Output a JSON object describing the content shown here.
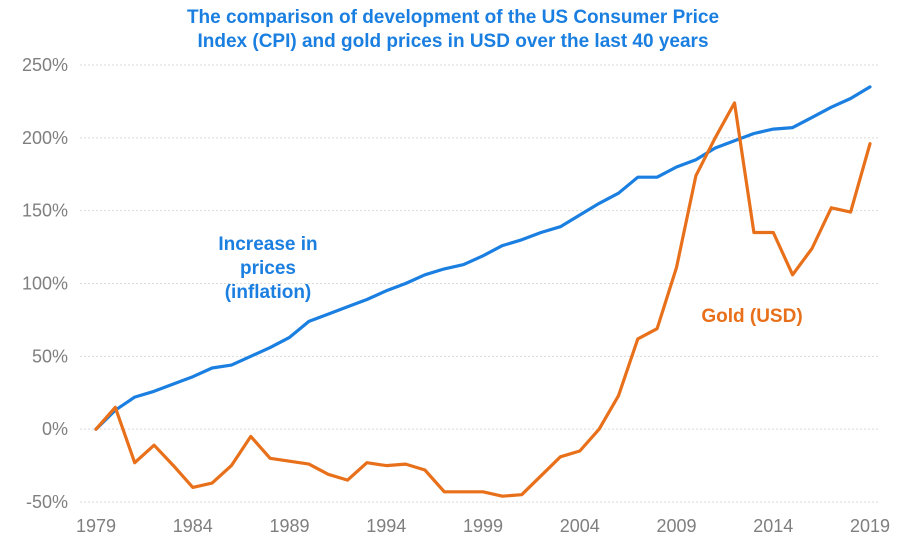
{
  "chart_data": {
    "type": "line",
    "title": "The comparison of development of the US Consumer Price Index (CPI) and gold prices in USD over the last 40 years",
    "title_lines": [
      "The comparison of development of the US Consumer Price",
      "Index (CPI) and gold prices in USD over the last 40 years"
    ],
    "xlabel": "",
    "ylabel": "",
    "value_unit": "percent change since 1979",
    "values_note": "Estimated from the chart by reading line vertices against the gridlines; approximate.",
    "x": [
      1979,
      1980,
      1981,
      1982,
      1983,
      1984,
      1985,
      1986,
      1987,
      1988,
      1989,
      1990,
      1991,
      1992,
      1993,
      1994,
      1995,
      1996,
      1997,
      1998,
      1999,
      2000,
      2001,
      2002,
      2003,
      2004,
      2005,
      2006,
      2007,
      2008,
      2009,
      2010,
      2011,
      2012,
      2013,
      2014,
      2015,
      2016,
      2017,
      2018,
      2019
    ],
    "xticks": [
      "1979",
      "1984",
      "1989",
      "1994",
      "1999",
      "2004",
      "2009",
      "2014",
      "2019"
    ],
    "yticks": [
      "-50%",
      "0%",
      "50%",
      "100%",
      "150%",
      "200%",
      "250%"
    ],
    "ytick_values": [
      -50,
      0,
      50,
      100,
      150,
      200,
      250
    ],
    "ylim": [
      -50,
      250
    ],
    "xlim": [
      1979,
      2019
    ],
    "grid": true,
    "legend": "none (inline annotations)",
    "series": [
      {
        "name": "Increase in prices (inflation)",
        "color": "#1a7fe0",
        "values": [
          0,
          13,
          22,
          26,
          31,
          36,
          42,
          44,
          50,
          56,
          63,
          74,
          79,
          84,
          89,
          95,
          100,
          106,
          110,
          113,
          119,
          126,
          130,
          135,
          139,
          147,
          155,
          162,
          173,
          173,
          180,
          185,
          193,
          198,
          203,
          206,
          207,
          214,
          221,
          227,
          235
        ]
      },
      {
        "name": "Gold (USD)",
        "color": "#e8701a",
        "values": [
          0,
          15,
          -23,
          -11,
          -25,
          -40,
          -37,
          -25,
          -5,
          -20,
          -22,
          -24,
          -31,
          -35,
          -23,
          -25,
          -24,
          -28,
          -43,
          -43,
          -43,
          -46,
          -45,
          -32,
          -19,
          -15,
          0,
          23,
          62,
          69,
          111,
          174,
          200,
          224,
          135,
          135,
          106,
          124,
          152,
          149,
          196
        ]
      }
    ],
    "annotations": [
      {
        "text_lines": [
          "Increase in",
          "prices",
          "(inflation)"
        ],
        "color": "#1a7fe0",
        "series": "Increase in prices (inflation)"
      },
      {
        "text_lines": [
          "Gold (USD)"
        ],
        "color": "#e8701a",
        "series": "Gold (USD)"
      }
    ]
  }
}
